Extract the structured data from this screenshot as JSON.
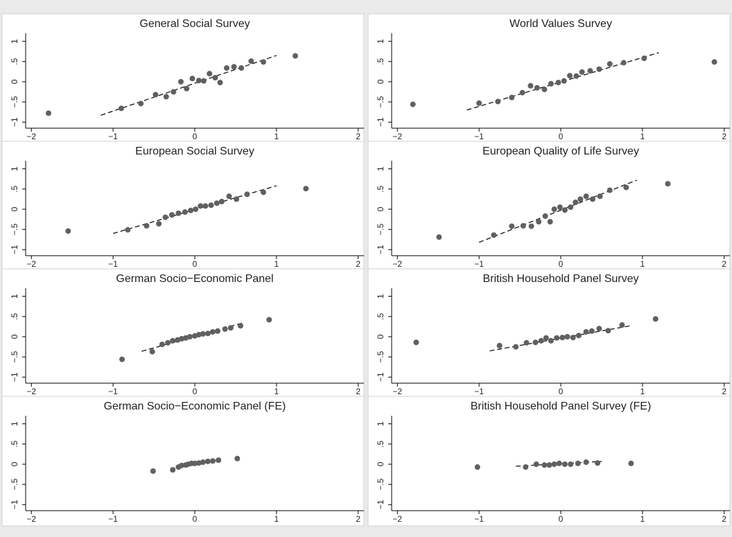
{
  "chart_data": [
    {
      "type": "scatter",
      "title": "General Social Survey",
      "color": "#606060",
      "x": [
        -1.79,
        -0.9,
        -0.66,
        -0.48,
        -0.35,
        -0.26,
        -0.17,
        -0.1,
        -0.03,
        0.05,
        0.11,
        0.18,
        0.25,
        0.31,
        0.39,
        0.48,
        0.57,
        0.69,
        0.84,
        1.23
      ],
      "y": [
        -0.78,
        -0.66,
        -0.54,
        -0.32,
        -0.37,
        -0.25,
        0,
        -0.17,
        0.08,
        0.03,
        0.02,
        0.2,
        0.1,
        -0.02,
        0.34,
        0.37,
        0.34,
        0.51,
        0.49,
        0.64
      ],
      "fit": {
        "x": [
          -1.15,
          1.0
        ],
        "y": [
          -0.83,
          0.65
        ]
      },
      "xlim": [
        -2.07,
        2.07
      ],
      "ylim": [
        -1.15,
        1.2
      ],
      "xticks": [
        {
          "value": -2,
          "label": "−2"
        },
        {
          "value": -1,
          "label": "−1"
        },
        0,
        1,
        2
      ],
      "yticks": [
        {
          "value": -1,
          "label": "−1"
        },
        {
          "value": -0.5,
          "label": "−.5"
        },
        0,
        {
          "value": 0.5,
          "label": ".5"
        },
        1
      ]
    },
    {
      "type": "scatter",
      "title": "World Values Survey",
      "color": "#606060",
      "x": [
        -1.81,
        -1.0,
        -0.77,
        -0.6,
        -0.47,
        -0.37,
        -0.29,
        -0.2,
        -0.12,
        -0.03,
        0.04,
        0.11,
        0.19,
        0.26,
        0.36,
        0.47,
        0.6,
        0.77,
        1.02,
        1.88
      ],
      "y": [
        -0.56,
        -0.53,
        -0.49,
        -0.39,
        -0.27,
        -0.1,
        -0.15,
        -0.19,
        -0.05,
        -0.02,
        0.02,
        0.15,
        0.14,
        0.24,
        0.27,
        0.31,
        0.44,
        0.47,
        0.58,
        0.49
      ],
      "fit": {
        "x": [
          -1.15,
          1.2
        ],
        "y": [
          -0.7,
          0.72
        ]
      },
      "xlim": [
        -2.07,
        2.07
      ],
      "ylim": [
        -1.15,
        1.2
      ],
      "xticks": [
        {
          "value": -2,
          "label": "−2"
        },
        {
          "value": -1,
          "label": "−1"
        },
        0,
        1,
        2
      ],
      "yticks": [
        {
          "value": -1,
          "label": "−1"
        },
        {
          "value": -0.5,
          "label": "−.5"
        },
        0,
        {
          "value": 0.5,
          "label": ".5"
        },
        1
      ]
    },
    {
      "type": "scatter",
      "title": "European Social Survey",
      "color": "#606060",
      "x": [
        -1.55,
        -0.82,
        -0.59,
        -0.44,
        -0.36,
        -0.28,
        -0.2,
        -0.12,
        -0.05,
        0.01,
        0.07,
        0.13,
        0.2,
        0.27,
        0.33,
        0.42,
        0.51,
        0.64,
        0.84,
        1.36
      ],
      "y": [
        -0.54,
        -0.51,
        -0.41,
        -0.36,
        -0.2,
        -0.14,
        -0.1,
        -0.07,
        -0.03,
        0,
        0.08,
        0.08,
        0.1,
        0.15,
        0.19,
        0.32,
        0.25,
        0.37,
        0.42,
        0.51
      ],
      "fit": {
        "x": [
          -1.0,
          1.0
        ],
        "y": [
          -0.6,
          0.58
        ]
      },
      "xlim": [
        -2.07,
        2.07
      ],
      "ylim": [
        -1.15,
        1.2
      ],
      "xticks": [
        {
          "value": -2,
          "label": "−2"
        },
        {
          "value": -1,
          "label": "−1"
        },
        0,
        1,
        2
      ],
      "yticks": [
        {
          "value": -1,
          "label": "−1"
        },
        {
          "value": -0.5,
          "label": "−.5"
        },
        0,
        {
          "value": 0.5,
          "label": ".5"
        },
        1
      ]
    },
    {
      "type": "scatter",
      "title": "European Quality of Life Survey",
      "color": "#606060",
      "x": [
        -1.49,
        -0.82,
        -0.6,
        -0.46,
        -0.36,
        -0.27,
        -0.19,
        -0.13,
        -0.08,
        -0.01,
        0.05,
        0.12,
        0.18,
        0.24,
        0.31,
        0.39,
        0.48,
        0.6,
        0.8,
        1.31
      ],
      "y": [
        -0.69,
        -0.64,
        -0.42,
        -0.41,
        -0.42,
        -0.31,
        -0.17,
        -0.31,
        0,
        0.05,
        -0.02,
        0.05,
        0.17,
        0.25,
        0.32,
        0.25,
        0.32,
        0.47,
        0.54,
        0.63
      ],
      "fit": {
        "x": [
          -1.0,
          0.93
        ],
        "y": [
          -0.82,
          0.72
        ]
      },
      "xlim": [
        -2.07,
        2.07
      ],
      "ylim": [
        -1.15,
        1.2
      ],
      "xticks": [
        {
          "value": -2,
          "label": "−2"
        },
        {
          "value": -1,
          "label": "−1"
        },
        0,
        1,
        2
      ],
      "yticks": [
        {
          "value": -1,
          "label": "−1"
        },
        {
          "value": -0.5,
          "label": "−.5"
        },
        0,
        {
          "value": 0.5,
          "label": ".5"
        },
        1
      ]
    },
    {
      "type": "scatter",
      "title": "German Socio−Economic Panel",
      "color": "#606060",
      "x": [
        -0.89,
        -0.52,
        -0.4,
        -0.33,
        -0.27,
        -0.21,
        -0.16,
        -0.11,
        -0.06,
        0,
        0.05,
        0.1,
        0.16,
        0.22,
        0.28,
        0.37,
        0.44,
        0.56,
        0.91
      ],
      "y": [
        -0.56,
        -0.37,
        -0.19,
        -0.15,
        -0.1,
        -0.08,
        -0.05,
        -0.03,
        0,
        0.02,
        0.05,
        0.07,
        0.08,
        0.12,
        0.14,
        0.19,
        0.22,
        0.27,
        0.42
      ],
      "fit": {
        "x": [
          -0.65,
          0.6
        ],
        "y": [
          -0.36,
          0.35
        ]
      },
      "xlim": [
        -2.07,
        2.07
      ],
      "ylim": [
        -1.15,
        1.2
      ],
      "xticks": [
        {
          "value": -2,
          "label": "−2"
        },
        {
          "value": -1,
          "label": "−1"
        },
        0,
        1,
        2
      ],
      "yticks": [
        {
          "value": -1,
          "label": "−1"
        },
        {
          "value": -0.5,
          "label": "−.5"
        },
        0,
        {
          "value": 0.5,
          "label": ".5"
        },
        1
      ]
    },
    {
      "type": "scatter",
      "title": "British Household Panel Survey",
      "color": "#606060",
      "x": [
        -1.77,
        -0.75,
        -0.55,
        -0.42,
        -0.31,
        -0.24,
        -0.18,
        -0.12,
        -0.05,
        0.02,
        0.08,
        0.15,
        0.22,
        0.31,
        0.38,
        0.47,
        0.58,
        0.75,
        1.16
      ],
      "y": [
        -0.14,
        -0.22,
        -0.25,
        -0.15,
        -0.14,
        -0.1,
        -0.03,
        -0.1,
        -0.03,
        -0.02,
        0,
        -0.02,
        0.03,
        0.12,
        0.14,
        0.2,
        0.15,
        0.29,
        0.44
      ],
      "fit": {
        "x": [
          -0.87,
          0.85
        ],
        "y": [
          -0.35,
          0.27
        ]
      },
      "xlim": [
        -2.07,
        2.07
      ],
      "ylim": [
        -1.15,
        1.2
      ],
      "xticks": [
        {
          "value": -2,
          "label": "−2"
        },
        {
          "value": -1,
          "label": "−1"
        },
        0,
        1,
        2
      ],
      "yticks": [
        {
          "value": -1,
          "label": "−1"
        },
        {
          "value": -0.5,
          "label": "−.5"
        },
        0,
        {
          "value": 0.5,
          "label": ".5"
        },
        1
      ]
    },
    {
      "type": "scatter",
      "title": "German Socio−Economic Panel (FE)",
      "color": "#606060",
      "x": [
        -0.51,
        -0.27,
        -0.2,
        -0.16,
        -0.11,
        -0.08,
        -0.04,
        0,
        0.05,
        0.1,
        0.16,
        0.22,
        0.29,
        0.52
      ],
      "y": [
        -0.17,
        -0.14,
        -0.07,
        -0.03,
        -0.02,
        0,
        0.02,
        0.02,
        0.03,
        0.05,
        0.07,
        0.08,
        0.1,
        0.14
      ],
      "fit": {
        "x": [
          -0.3,
          0.32
        ],
        "y": [
          -0.12,
          0.11
        ]
      },
      "xlim": [
        -2.07,
        2.07
      ],
      "ylim": [
        -1.15,
        1.2
      ],
      "xticks": [
        {
          "value": -2,
          "label": "−2"
        },
        {
          "value": -1,
          "label": "−1"
        },
        0,
        1,
        2
      ],
      "yticks": [
        {
          "value": -1,
          "label": "−1"
        },
        {
          "value": -0.5,
          "label": "−.5"
        },
        0,
        {
          "value": 0.5,
          "label": ".5"
        },
        1
      ]
    },
    {
      "type": "scatter",
      "title": "British Household Panel Survey (FE)",
      "color": "#606060",
      "x": [
        -1.02,
        -0.43,
        -0.3,
        -0.2,
        -0.14,
        -0.08,
        -0.02,
        0.05,
        0.12,
        0.21,
        0.31,
        0.45,
        0.86
      ],
      "y": [
        -0.07,
        -0.07,
        0,
        -0.02,
        -0.02,
        0,
        0.02,
        0,
        0,
        0.02,
        0.05,
        0.03,
        0.02
      ],
      "fit": {
        "x": [
          -0.55,
          0.5
        ],
        "y": [
          -0.05,
          0.07
        ]
      },
      "xlim": [
        -2.07,
        2.07
      ],
      "ylim": [
        -1.15,
        1.2
      ],
      "xticks": [
        {
          "value": -2,
          "label": "−2"
        },
        {
          "value": -1,
          "label": "−1"
        },
        0,
        1,
        2
      ],
      "yticks": [
        {
          "value": -1,
          "label": "−1"
        },
        {
          "value": -0.5,
          "label": "−.5"
        },
        0,
        {
          "value": 0.5,
          "label": ".5"
        },
        1
      ]
    }
  ]
}
